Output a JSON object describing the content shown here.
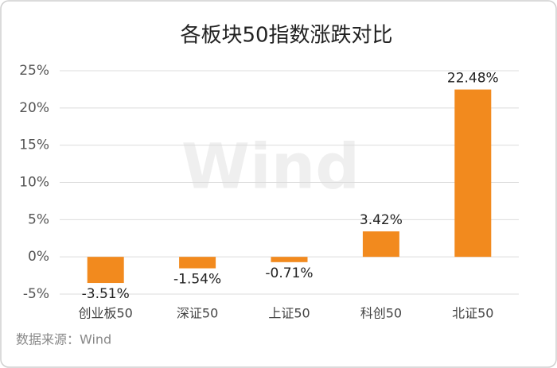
{
  "chart_data": {
    "type": "bar",
    "title": "各板块50指数涨跌对比",
    "categories": [
      "创业板50",
      "深证50",
      "上证50",
      "科创50",
      "北证50"
    ],
    "values": [
      -3.51,
      -1.54,
      -0.71,
      3.42,
      22.48
    ],
    "value_labels": [
      "-3.51%",
      "-1.54%",
      "-0.71%",
      "3.42%",
      "22.48%"
    ],
    "color": "#f28a1e",
    "ylim": [
      -5,
      25
    ],
    "yticks": [
      {
        "value": -5,
        "label": "-5%"
      },
      {
        "value": 0,
        "label": "0%"
      },
      {
        "value": 5,
        "label": "5%"
      },
      {
        "value": 10,
        "label": "10%"
      },
      {
        "value": 15,
        "label": "15%"
      },
      {
        "value": 20,
        "label": "20%"
      },
      {
        "value": 25,
        "label": "25%"
      }
    ],
    "grid": true,
    "source": "数据来源：Wind",
    "watermark": "Wind"
  }
}
